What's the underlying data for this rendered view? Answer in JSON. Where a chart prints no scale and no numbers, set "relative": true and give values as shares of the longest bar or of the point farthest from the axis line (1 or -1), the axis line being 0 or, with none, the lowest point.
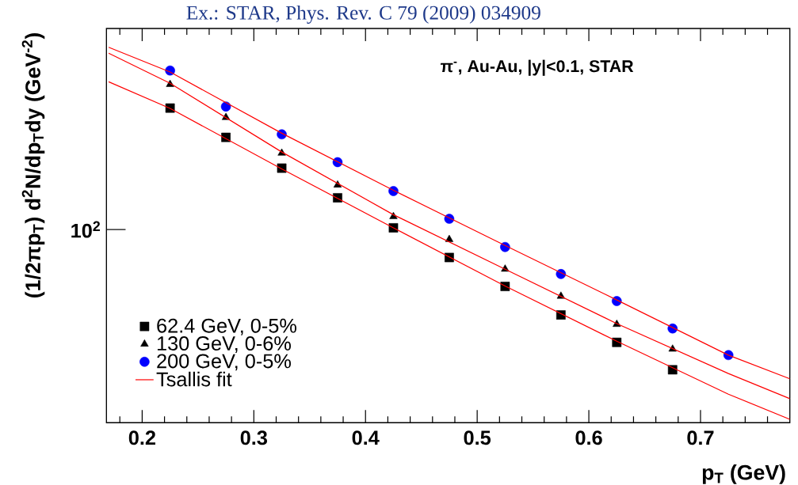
{
  "chart_data": {
    "type": "scatter",
    "relative": true,
    "legend": "bottom left",
    "xlabel": "p$_{T}$ (GeV)",
    "ylabel": "(1/2πp$_{T}$) d$^{2}$N/dp$_{T}$dy (GeV$^{-2}$)",
    "annotations": [
      "π$^{-}$, Au-Au, |y|<0.1, STAR",
      "Ex.: STAR, Phys. Rev. C 79 (2009) 034909",
      "10$^{2}$"
    ],
    "xlim": [
      0.168,
      0.78
    ],
    "xticks": [
      {
        "value": 0.18,
        "label": null
      },
      0.2,
      {
        "value": 0.22,
        "label": null
      },
      {
        "value": 0.24,
        "label": null
      },
      {
        "value": 0.26,
        "label": null
      },
      {
        "value": 0.28,
        "label": null
      },
      0.3,
      {
        "value": 0.32,
        "label": null
      },
      {
        "value": 0.34,
        "label": null
      },
      {
        "value": 0.36,
        "label": null
      },
      {
        "value": 0.38,
        "label": null
      },
      0.4,
      {
        "value": 0.42,
        "label": null
      },
      {
        "value": 0.44,
        "label": null
      },
      {
        "value": 0.46,
        "label": null
      },
      {
        "value": 0.48,
        "label": null
      },
      0.5,
      {
        "value": 0.52,
        "label": null
      },
      {
        "value": 0.54,
        "label": null
      },
      {
        "value": 0.56,
        "label": null
      },
      {
        "value": 0.58,
        "label": null
      },
      0.6,
      {
        "value": 0.62,
        "label": null
      },
      {
        "value": 0.64,
        "label": null
      },
      {
        "value": 0.66,
        "label": null
      },
      {
        "value": 0.68,
        "label": null
      },
      0.7,
      {
        "value": 0.72,
        "label": null
      },
      {
        "value": 0.74,
        "label": null
      },
      {
        "value": 0.76,
        "label": null
      }
    ],
    "x": [
      0.225,
      0.275,
      0.325,
      0.375,
      0.425,
      0.475,
      0.525,
      0.575,
      0.625,
      0.675,
      0.725
    ],
    "series": [
      {
        "name": "62.4 GeV, 0-5%",
        "color": "#000000",
        "marker": "square",
        "values": [
          0.838,
          0.76,
          0.678,
          0.599,
          0.519,
          0.44,
          0.363,
          0.287,
          0.214,
          0.141,
          null
        ]
      },
      {
        "name": "130 GeV, 0-6%",
        "color": "#000000",
        "marker": "triangle",
        "values": [
          0.901,
          0.813,
          0.718,
          0.633,
          0.549,
          0.488,
          0.409,
          0.337,
          0.262,
          0.196,
          null
        ]
      },
      {
        "name": "200 GeV, 0-5%",
        "color": "#0000ff",
        "marker": "circle",
        "values": [
          0.938,
          0.842,
          0.768,
          0.694,
          0.617,
          0.543,
          0.468,
          0.396,
          0.324,
          0.251,
          0.18
        ]
      },
      {
        "name": "Tsallis fit",
        "type": "line",
        "color": "#ff0000",
        "marker": "none",
        "x": [
          0.17,
          0.225,
          0.325,
          0.425,
          0.525,
          0.625,
          0.725,
          0.78
        ],
        "values": [
          0.908,
          0.837,
          0.676,
          0.519,
          0.364,
          0.217,
          0.076,
          0.009
        ]
      },
      {
        "type": "line",
        "color": "#ff0000",
        "marker": "none",
        "x": [
          0.17,
          0.225,
          0.325,
          0.425,
          0.525,
          0.625,
          0.725,
          0.78
        ],
        "values": [
          0.984,
          0.904,
          0.721,
          0.554,
          0.409,
          0.264,
          0.131,
          0.064
        ]
      },
      {
        "type": "line",
        "color": "#ff0000",
        "marker": "none",
        "x": [
          0.17,
          0.225,
          0.325,
          0.425,
          0.525,
          0.625,
          0.725,
          0.78
        ],
        "values": [
          1.0,
          0.934,
          0.771,
          0.619,
          0.472,
          0.327,
          0.18,
          0.117
        ]
      }
    ]
  }
}
